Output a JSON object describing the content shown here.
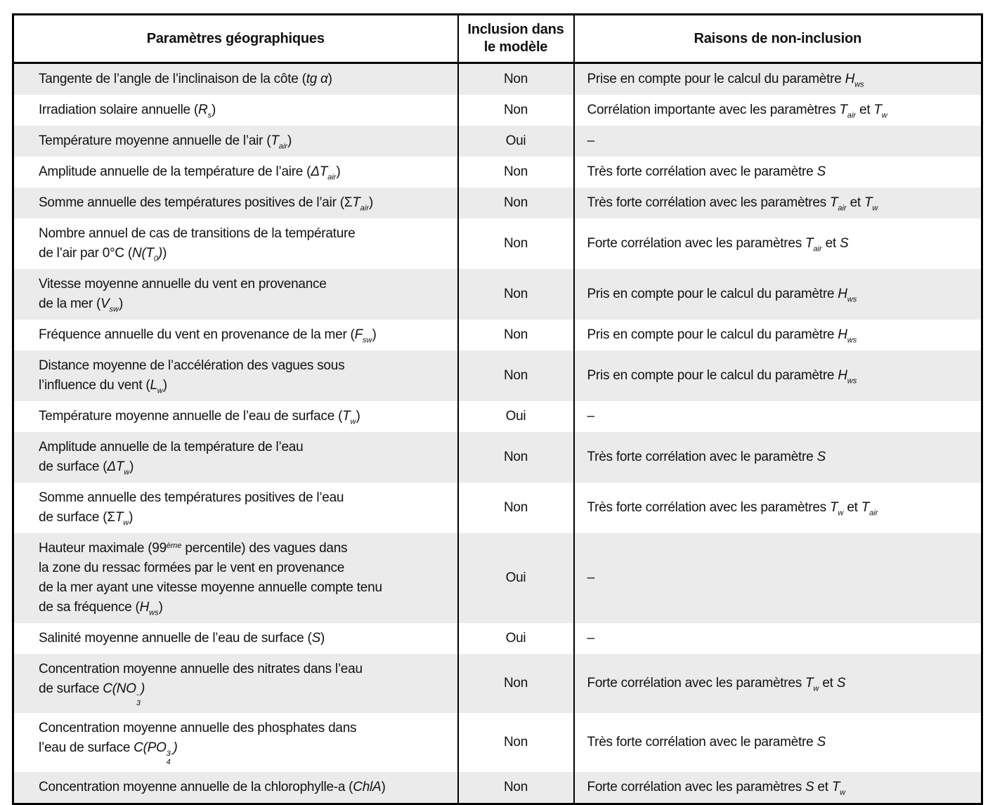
{
  "page": {
    "background_color": "#ffffff",
    "stripe_color": "#ebebeb",
    "border_color": "#000000"
  },
  "table": {
    "headers": [
      {
        "label_html": "Paramètres géographiques"
      },
      {
        "label_html": "Inclusion dans<br>le modèle"
      },
      {
        "label_html": "Raisons de non-inclusion"
      }
    ],
    "inclusion_values_legend": [
      "Oui",
      "Non"
    ],
    "rows": [
      {
        "param_html": "Tangente de l’angle de l’inclinaison de la côte (<i>tg α</i>)",
        "inclusion": "Non",
        "raison_html": "Prise en compte pour le calcul du paramètre <i>H<sub>ws</sub></i>"
      },
      {
        "param_html": "Irradiation solaire annuelle (<i>R<sub>s</sub></i>)",
        "inclusion": "Non",
        "raison_html": "Corrélation importante avec les paramètres <i>T<sub>air</sub></i> et <i>T<sub>w</sub></i>"
      },
      {
        "param_html": "Température moyenne annuelle de l’air (<i>T<sub>air</sub></i>)",
        "inclusion": "Oui",
        "raison_html": "–"
      },
      {
        "param_html": "Amplitude annuelle de la température de l’aire (<i>ΔT<sub>air</sub></i>)",
        "inclusion": "Non",
        "raison_html": "Très forte corrélation avec le paramètre <i>S</i>"
      },
      {
        "param_html": "Somme annuelle des températures positives de l’air (Σ<i>T<sub>air</sub></i>)",
        "inclusion": "Non",
        "raison_html": "Très forte corrélation avec les paramètres <i>T<sub>air</sub></i> et <i>T<sub>w</sub></i>"
      },
      {
        "param_html": "Nombre annuel de cas de transitions de la température<br>de l’air par 0°C (<i>N(T<sub>0</sub>)</i>)",
        "inclusion": "Non",
        "raison_html": "Forte corrélation avec les paramètres <i>T<sub>air</sub></i> et <i>S</i>"
      },
      {
        "param_html": "Vitesse moyenne annuelle du vent en provenance<br>de la mer (<i>V<sub>sw</sub></i>)",
        "inclusion": "Non",
        "raison_html": "Pris en compte pour le calcul du paramètre <i>H<sub>ws</sub></i>"
      },
      {
        "param_html": "Fréquence annuelle du vent en provenance de la mer (<i>F<sub>sw</sub></i>)",
        "inclusion": "Non",
        "raison_html": "Pris en compte pour le calcul du paramètre <i>H<sub>ws</sub></i>"
      },
      {
        "param_html": "Distance moyenne de l’accélération des vagues sous<br>l’influence du vent (<i>L<sub>w</sub></i>)",
        "inclusion": "Non",
        "raison_html": "Pris en compte pour le calcul du paramètre <i>H<sub>ws</sub></i>"
      },
      {
        "param_html": "Température moyenne annuelle de l’eau de surface (<i>T<sub>w</sub></i>)",
        "inclusion": "Oui",
        "raison_html": "–"
      },
      {
        "param_html": "Amplitude annuelle de la température de l’eau<br>de surface (<i>ΔT<sub>w</sub></i>)",
        "inclusion": "Non",
        "raison_html": "Très forte corrélation avec le paramètre <i>S</i>"
      },
      {
        "param_html": "Somme annuelle des températures positives de l’eau<br>de surface (Σ<i>T<sub>w</sub></i>)",
        "inclusion": "Non",
        "raison_html": "Très forte corrélation avec les paramètres <i>T<sub>w</sub></i> et <i>T<sub>air</sub></i>"
      },
      {
        "param_html": "Hauteur maximale (99<sup>ème</sup> percentile) des vagues dans<br>la zone du ressac formées par le vent en provenance<br>de la mer ayant une vitesse moyenne annuelle compte tenu<br>de sa fréquence (<i>H<sub>ws</sub></i>)",
        "inclusion": "Oui",
        "raison_html": "–"
      },
      {
        "param_html": "Salinité moyenne annuelle de l’eau de surface (<i>S</i>)",
        "inclusion": "Oui",
        "raison_html": "–"
      },
      {
        "param_html": "Concentration moyenne annuelle des nitrates dans l’eau<br>de surface <i>C(NO<span class='stk'><span>-</span><span>3</span></span>)</i>",
        "inclusion": "Non",
        "raison_html": "Forte corrélation avec les paramètres <i>T<sub>w</sub></i> et <i>S</i>"
      },
      {
        "param_html": "Concentration moyenne annuelle des phosphates dans<br>l’eau de surface <i>C(PO<span class='stk'><span>3-</span><span>4</span></span>)</i>",
        "inclusion": "Non",
        "raison_html": "Très forte corrélation avec le paramètre <i>S</i>"
      },
      {
        "param_html": "Concentration moyenne annuelle de la chlorophylle-a (<i>ChlA</i>)",
        "inclusion": "Non",
        "raison_html": "Forte corrélation avec les paramètres <i>S</i> et <i>T<sub>w</sub></i>"
      }
    ]
  }
}
